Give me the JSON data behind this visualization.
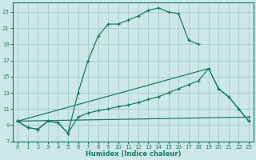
{
  "background_color": "#cde8e8",
  "grid_color": "#aacfcf",
  "line_color": "#1a7a6a",
  "xlabel": "Humidex (Indice chaleur)",
  "xlim": [
    -0.5,
    23.5
  ],
  "ylim": [
    7,
    24.2
  ],
  "yticks": [
    7,
    9,
    11,
    13,
    15,
    17,
    19,
    21,
    23
  ],
  "xticks": [
    0,
    1,
    2,
    3,
    4,
    5,
    6,
    7,
    8,
    9,
    10,
    11,
    12,
    13,
    14,
    15,
    16,
    17,
    18,
    19,
    20,
    21,
    22,
    23
  ],
  "line1_x": [
    0,
    1,
    2,
    3,
    4,
    5,
    6,
    7,
    8,
    9,
    10,
    11,
    12,
    13,
    14,
    15,
    16,
    17,
    18
  ],
  "line1_y": [
    9.5,
    8.7,
    8.5,
    9.5,
    9.3,
    8.0,
    13.0,
    17.0,
    20.0,
    21.5,
    21.5,
    22.0,
    22.5,
    23.2,
    23.5,
    23.0,
    22.8,
    19.5,
    19.0
  ],
  "line2_x": [
    0,
    1,
    2,
    3,
    4,
    5,
    6,
    7,
    8,
    9,
    10,
    11,
    12,
    13,
    14,
    15,
    16,
    17,
    18,
    19,
    20,
    21,
    22,
    23
  ],
  "line2_y": [
    9.5,
    8.7,
    8.5,
    9.5,
    9.3,
    8.0,
    10.0,
    10.5,
    10.8,
    11.0,
    11.3,
    11.5,
    11.8,
    12.2,
    12.5,
    13.0,
    13.5,
    14.0,
    14.5,
    16.0,
    13.5,
    12.5,
    11.0,
    9.5
  ],
  "line3_x": [
    0,
    23
  ],
  "line3_y": [
    9.5,
    10.0
  ],
  "line4_x": [
    0,
    19,
    20,
    21,
    22,
    23
  ],
  "line4_y": [
    9.5,
    16.0,
    13.5,
    12.5,
    11.0,
    9.5
  ]
}
